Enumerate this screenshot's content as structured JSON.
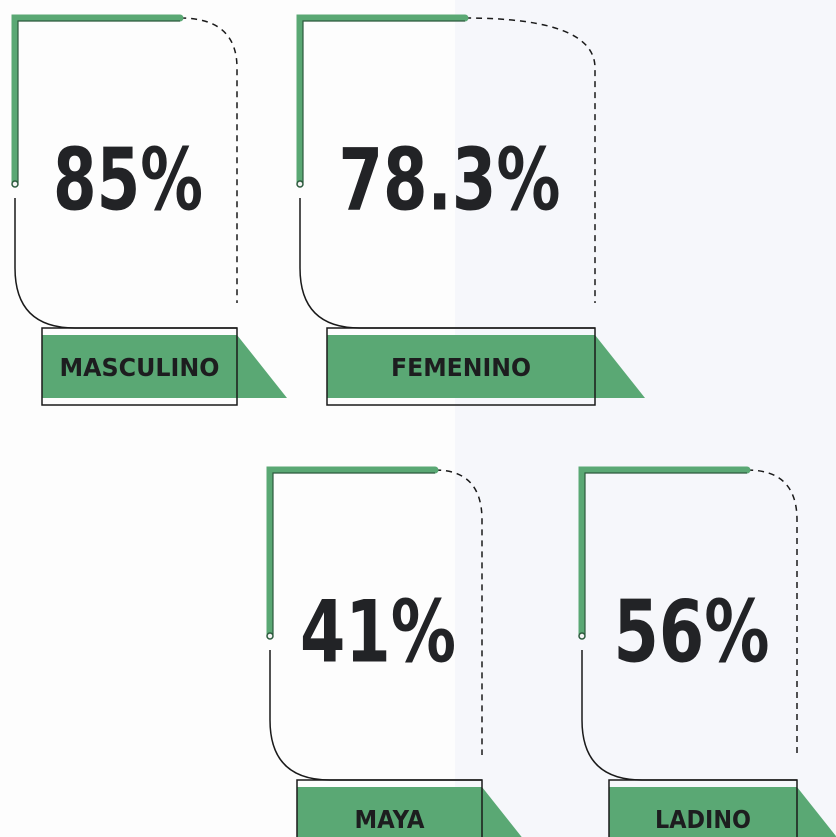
{
  "cards": [
    {
      "value": "85%",
      "label": "MASCULINO"
    },
    {
      "value": "78.3%",
      "label": "FEMENINO"
    },
    {
      "value": "41%",
      "label": "MAYA"
    },
    {
      "value": "56%",
      "label": "LADINO"
    }
  ]
}
